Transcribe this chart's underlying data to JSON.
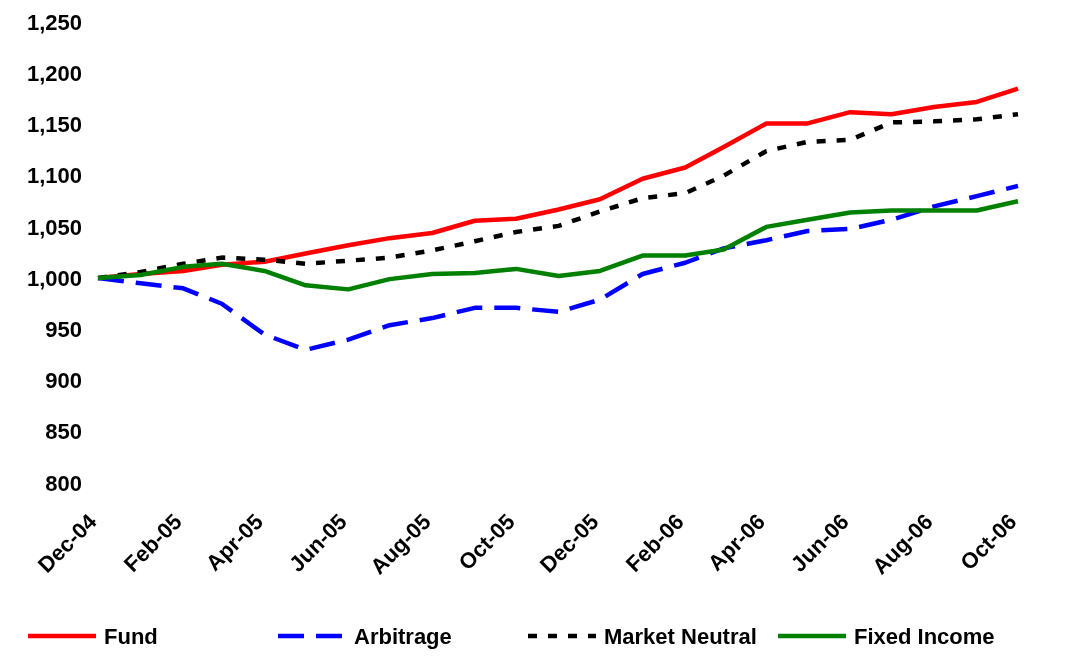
{
  "chart_data": {
    "type": "line",
    "x": [
      "2004-12",
      "2005-01",
      "2005-02",
      "2005-03",
      "2005-04",
      "2005-05",
      "2005-06",
      "2005-07",
      "2005-08",
      "2005-09",
      "2005-10",
      "2005-11",
      "2005-12",
      "2006-01",
      "2006-02",
      "2006-03",
      "2006-04",
      "2006-05",
      "2006-06",
      "2006-07",
      "2006-08",
      "2006-09",
      "2006-10"
    ],
    "series": [
      {
        "name": "Fund",
        "color": "#ff0000",
        "line_style": "solid",
        "values": [
          1000,
          1004,
          1007,
          1013,
          1016,
          1024,
          1032,
          1039,
          1044,
          1056,
          1058,
          1067,
          1077,
          1097,
          1108,
          1128,
          1151,
          1151,
          1162,
          1160,
          1167,
          1172,
          1185
        ]
      },
      {
        "name": "Arbitrage",
        "color": "#0000ff",
        "line_style": "dashed",
        "values": [
          1000,
          995,
          990,
          975,
          945,
          930,
          940,
          954,
          961,
          971,
          971,
          967,
          979,
          1004,
          1015,
          1029,
          1037,
          1046,
          1048,
          1057,
          1070,
          1080,
          1090
        ]
      },
      {
        "name": "Market Neutral",
        "color": "#000000",
        "line_style": "dotted",
        "values": [
          1000,
          1006,
          1014,
          1020,
          1018,
          1014,
          1017,
          1020,
          1027,
          1036,
          1045,
          1051,
          1065,
          1078,
          1083,
          1100,
          1124,
          1133,
          1135,
          1152,
          1153,
          1155,
          1160
        ]
      },
      {
        "name": "Fixed Income",
        "color": "#008000",
        "line_style": "solid",
        "values": [
          1000,
          1003,
          1011,
          1014,
          1007,
          993,
          989,
          999,
          1004,
          1005,
          1009,
          1002,
          1007,
          1022,
          1022,
          1028,
          1050,
          1057,
          1064,
          1066,
          1066,
          1066,
          1075
        ]
      }
    ],
    "xlim": [
      "2004-12",
      "2006-10"
    ],
    "xticks": [
      {
        "value": "2004-12",
        "label": "Dec-04"
      },
      {
        "value": "2005-02",
        "label": "Feb-05"
      },
      {
        "value": "2005-04",
        "label": "Apr-05"
      },
      {
        "value": "2005-06",
        "label": "Jun-05"
      },
      {
        "value": "2005-08",
        "label": "Aug-05"
      },
      {
        "value": "2005-10",
        "label": "Oct-05"
      },
      {
        "value": "2005-12",
        "label": "Dec-05"
      },
      {
        "value": "2006-02",
        "label": "Feb-06"
      },
      {
        "value": "2006-04",
        "label": "Apr-06"
      },
      {
        "value": "2006-06",
        "label": "Jun-06"
      },
      {
        "value": "2006-08",
        "label": "Aug-06"
      },
      {
        "value": "2006-10",
        "label": "Oct-06"
      }
    ],
    "ylim": [
      800,
      1250
    ],
    "yticks": [
      {
        "value": 800,
        "label": "800"
      },
      {
        "value": 850,
        "label": "850"
      },
      {
        "value": 900,
        "label": "900"
      },
      {
        "value": 950,
        "label": "950"
      },
      {
        "value": 1000,
        "label": "1,000"
      },
      {
        "value": 1050,
        "label": "1,050"
      },
      {
        "value": 1100,
        "label": "1,100"
      },
      {
        "value": 1150,
        "label": "1,150"
      },
      {
        "value": 1200,
        "label": "1,200"
      },
      {
        "value": 1250,
        "label": "1,250"
      }
    ],
    "grid": false,
    "legend": "bottom"
  }
}
